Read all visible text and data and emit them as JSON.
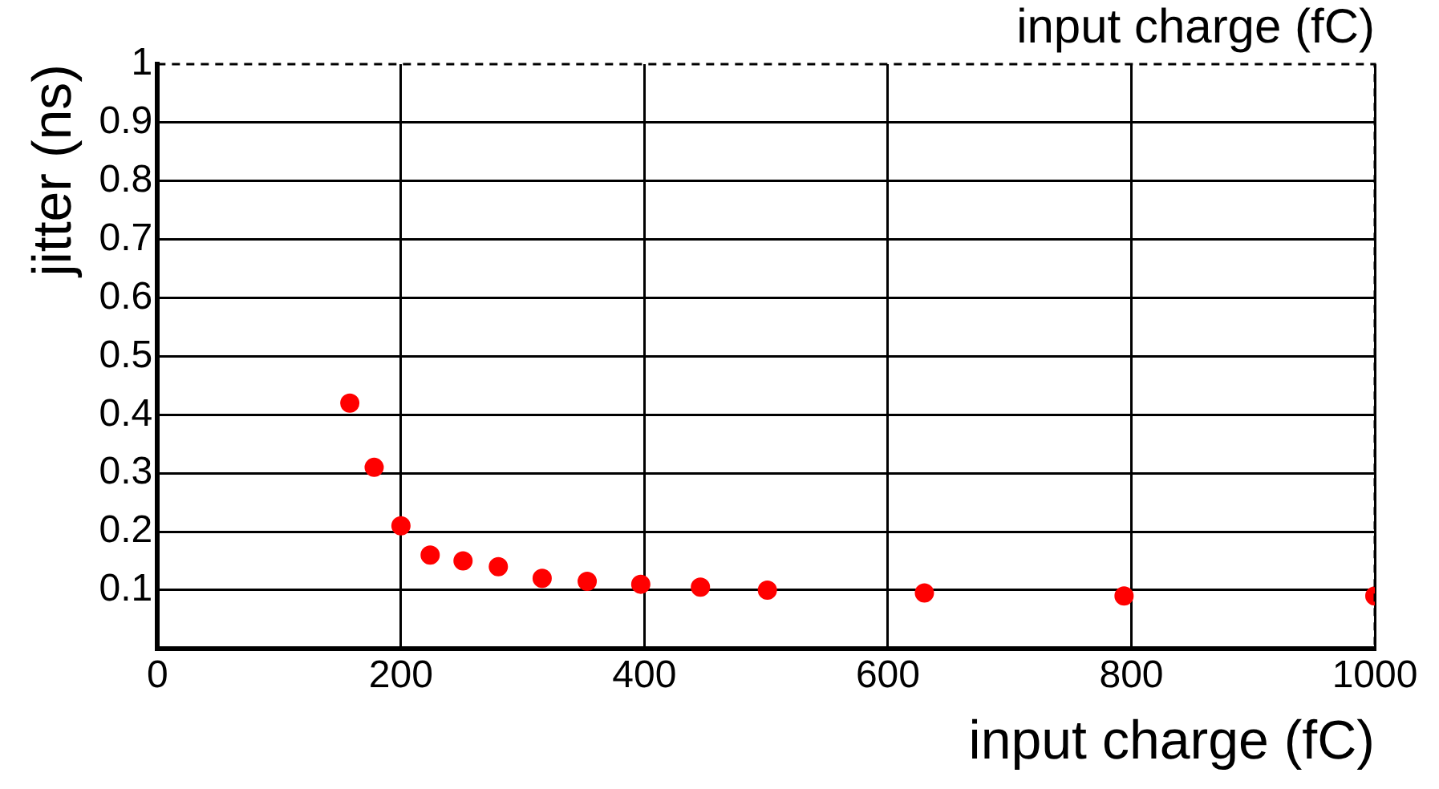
{
  "chart_data": {
    "type": "scatter",
    "title": "input charge (fC)",
    "xlabel": "input charge (fC)",
    "ylabel": "jitter (ns)",
    "x": [
      158,
      178,
      200,
      224,
      251,
      280,
      316,
      353,
      397,
      446,
      501,
      630,
      794,
      1000
    ],
    "series": [
      {
        "color": "#ff0000",
        "values": [
          0.42,
          0.31,
          0.21,
          0.16,
          0.15,
          0.14,
          0.12,
          0.115,
          0.11,
          0.105,
          0.1,
          0.095,
          0.09,
          0.09
        ]
      }
    ],
    "xlim": [
      0,
      1000
    ],
    "xticks": [
      0,
      200,
      400,
      600,
      800,
      1000
    ],
    "ylim": [
      0,
      1
    ],
    "yticks": [
      0.1,
      0.2,
      0.3,
      0.4,
      0.5,
      0.6,
      0.7,
      0.8,
      0.9,
      1
    ],
    "grid": true,
    "legend": false,
    "marker": "circle"
  }
}
